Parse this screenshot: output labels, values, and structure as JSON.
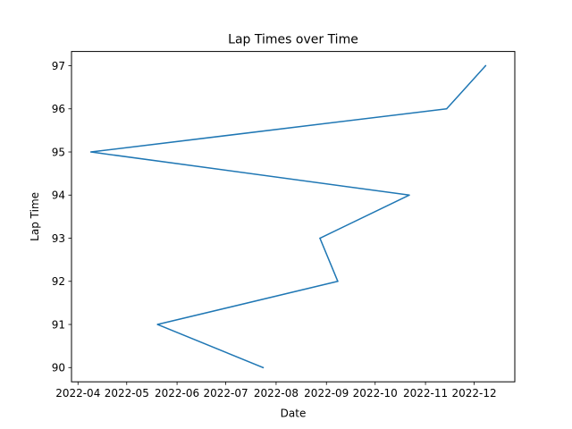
{
  "chart_data": {
    "type": "line",
    "title": "Lap Times over Time",
    "xlabel": "Date",
    "ylabel": "Lap Time",
    "x_axis_type": "date",
    "xlim": [
      "2022-03-28",
      "2022-12-26"
    ],
    "ylim": [
      89.67,
      97.33
    ],
    "grid": false,
    "legend": "none",
    "x_ticks": [
      "2022-04-01",
      "2022-05-01",
      "2022-06-01",
      "2022-07-01",
      "2022-08-01",
      "2022-09-01",
      "2022-10-01",
      "2022-11-01",
      "2022-12-01"
    ],
    "x_tick_labels": [
      "2022-04",
      "2022-05",
      "2022-06",
      "2022-07",
      "2022-08",
      "2022-09",
      "2022-10",
      "2022-11",
      "2022-12"
    ],
    "y_ticks": [
      90,
      91,
      92,
      93,
      94,
      95,
      96,
      97
    ],
    "series": [
      {
        "color": "#1f77b4",
        "points": [
          {
            "x": "2022-07-24",
            "y": 90
          },
          {
            "x": "2022-05-20",
            "y": 91
          },
          {
            "x": "2022-09-08",
            "y": 92
          },
          {
            "x": "2022-08-28",
            "y": 93
          },
          {
            "x": "2022-10-22",
            "y": 94
          },
          {
            "x": "2022-04-09",
            "y": 95
          },
          {
            "x": "2022-11-14",
            "y": 96
          },
          {
            "x": "2022-12-08",
            "y": 97
          }
        ]
      }
    ]
  }
}
